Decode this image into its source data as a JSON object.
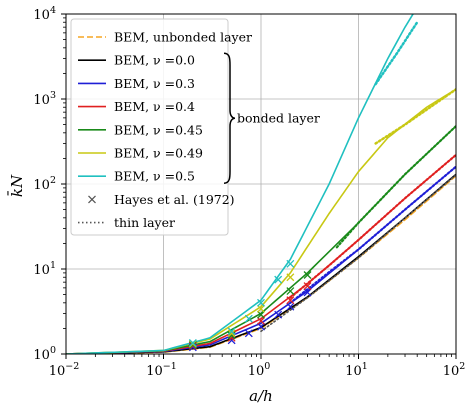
{
  "chart_data": {
    "type": "line",
    "xlabel": "a/h",
    "ylabel": "k̄N",
    "x_scale": "log",
    "y_scale": "log",
    "xlim": [
      0.01,
      100
    ],
    "ylim": [
      1,
      10000
    ],
    "grid": true,
    "legend_placement": "top-left",
    "x_ticks": [
      {
        "value": 0.01,
        "base": "10",
        "exp": "−2"
      },
      {
        "value": 0.1,
        "base": "10",
        "exp": "−1"
      },
      {
        "value": 1,
        "base": "10",
        "exp": "0"
      },
      {
        "value": 10,
        "base": "10",
        "exp": "1"
      },
      {
        "value": 100,
        "base": "10",
        "exp": "2"
      }
    ],
    "y_ticks": [
      {
        "value": 1,
        "base": "10",
        "exp": "0"
      },
      {
        "value": 10,
        "base": "10",
        "exp": "1"
      },
      {
        "value": 100,
        "base": "10",
        "exp": "2"
      },
      {
        "value": 1000,
        "base": "10",
        "exp": "3"
      },
      {
        "value": 10000,
        "base": "10",
        "exp": "4"
      }
    ],
    "brace_label": "bonded layer",
    "series": [
      {
        "name": "BEM, unbonded layer",
        "color": "#f5a623",
        "style": "dashed",
        "width": 1.6,
        "x": [
          0.01,
          0.1,
          0.3,
          1,
          3,
          10,
          30,
          100
        ],
        "y": [
          1.0,
          1.05,
          1.2,
          2.0,
          4.6,
          13.5,
          38,
          125
        ]
      },
      {
        "name": "BEM, ν =0.0",
        "color": "#000000",
        "style": "solid",
        "width": 1.6,
        "x": [
          0.01,
          0.1,
          0.3,
          1,
          3,
          10,
          30,
          100
        ],
        "y": [
          1.0,
          1.06,
          1.22,
          2.05,
          4.7,
          14,
          40,
          130
        ]
      },
      {
        "name": "BEM, ν =0.3",
        "color": "#1f1fd6",
        "style": "solid",
        "width": 1.6,
        "x": [
          0.01,
          0.1,
          0.3,
          1,
          3,
          10,
          30,
          100
        ],
        "y": [
          1.0,
          1.07,
          1.28,
          2.3,
          5.5,
          17,
          50,
          160
        ]
      },
      {
        "name": "BEM, ν =0.4",
        "color": "#e02020",
        "style": "solid",
        "width": 1.6,
        "x": [
          0.01,
          0.1,
          0.3,
          1,
          3,
          10,
          30,
          100
        ],
        "y": [
          1.0,
          1.08,
          1.33,
          2.6,
          6.7,
          22,
          68,
          220
        ]
      },
      {
        "name": "BEM, ν =0.45",
        "color": "#1a8a1a",
        "style": "solid",
        "width": 1.6,
        "x": [
          0.01,
          0.1,
          0.3,
          1,
          3,
          10,
          30,
          100
        ],
        "y": [
          1.0,
          1.09,
          1.4,
          3.0,
          9.0,
          35,
          130,
          480
        ]
      },
      {
        "name": "BEM, ν =0.49",
        "color": "#c8c814",
        "style": "solid",
        "width": 1.6,
        "x": [
          0.01,
          0.1,
          0.3,
          1,
          2,
          5,
          10,
          20,
          50,
          100
        ],
        "y": [
          1.0,
          1.1,
          1.5,
          3.6,
          9,
          45,
          140,
          350,
          800,
          1300
        ]
      },
      {
        "name": "BEM, ν =0.5",
        "color": "#20c0c0",
        "style": "solid",
        "width": 1.6,
        "x": [
          0.01,
          0.1,
          0.3,
          1,
          2,
          5,
          10,
          20,
          30,
          40
        ],
        "y": [
          1.0,
          1.1,
          1.55,
          4.3,
          13,
          100,
          600,
          3000,
          7000,
          12000
        ]
      },
      {
        "name": "thin layer",
        "color": "#555555",
        "style": "dotted",
        "width": 1.6,
        "legend": false,
        "x": [
          1,
          3,
          10,
          30,
          100
        ],
        "y": [
          1.85,
          4.6,
          13.5,
          40,
          128
        ]
      },
      {
        "name": "thin layer",
        "color": "#1f1fd6",
        "style": "dotted",
        "width": 2.2,
        "legend": false,
        "x": [
          2,
          5,
          10,
          30,
          100
        ],
        "y": [
          4.0,
          9.2,
          17,
          50,
          160
        ]
      },
      {
        "name": "thin layer",
        "color": "#e02020",
        "style": "dotted",
        "width": 2.2,
        "legend": false,
        "x": [
          2,
          5,
          10,
          30,
          100
        ],
        "y": [
          4.6,
          11,
          22,
          68,
          220
        ]
      },
      {
        "name": "thin layer",
        "color": "#1a8a1a",
        "style": "dotted",
        "width": 2.2,
        "legend": false,
        "x": [
          6,
          10,
          30,
          100
        ],
        "y": [
          18,
          35,
          130,
          480
        ]
      },
      {
        "name": "thin layer",
        "color": "#c8c814",
        "style": "dotted",
        "width": 2.5,
        "legend": false,
        "x": [
          15,
          30,
          100
        ],
        "y": [
          300,
          500,
          1300
        ]
      },
      {
        "name": "thin layer",
        "color": "#20c0c0",
        "style": "dotted",
        "width": 2.5,
        "legend": false,
        "x": [
          15,
          25,
          40
        ],
        "y": [
          1500,
          3500,
          8000
        ]
      }
    ],
    "markers": {
      "name": "Hayes et al. (1972)",
      "symbol": "x",
      "points": [
        {
          "x": 0.2,
          "y": 1.2,
          "color": "#1f1fd6"
        },
        {
          "x": 0.5,
          "y": 1.45,
          "color": "#1f1fd6"
        },
        {
          "x": 0.75,
          "y": 1.75,
          "color": "#1f1fd6"
        },
        {
          "x": 1.0,
          "y": 2.1,
          "color": "#1f1fd6"
        },
        {
          "x": 1.5,
          "y": 2.9,
          "color": "#1f1fd6"
        },
        {
          "x": 2.0,
          "y": 3.6,
          "color": "#1f1fd6"
        },
        {
          "x": 3.0,
          "y": 5.3,
          "color": "#1f1fd6"
        },
        {
          "x": 0.2,
          "y": 1.25,
          "color": "#e02020"
        },
        {
          "x": 0.5,
          "y": 1.55,
          "color": "#e02020"
        },
        {
          "x": 1.0,
          "y": 2.45,
          "color": "#e02020"
        },
        {
          "x": 2.0,
          "y": 4.3,
          "color": "#e02020"
        },
        {
          "x": 3.0,
          "y": 6.3,
          "color": "#e02020"
        },
        {
          "x": 0.2,
          "y": 1.28,
          "color": "#1a8a1a"
        },
        {
          "x": 0.5,
          "y": 1.65,
          "color": "#1a8a1a"
        },
        {
          "x": 1.0,
          "y": 2.9,
          "color": "#1a8a1a"
        },
        {
          "x": 2.0,
          "y": 5.5,
          "color": "#1a8a1a"
        },
        {
          "x": 3.0,
          "y": 8.5,
          "color": "#1a8a1a"
        },
        {
          "x": 0.2,
          "y": 1.32,
          "color": "#c8c814"
        },
        {
          "x": 0.5,
          "y": 1.75,
          "color": "#c8c814"
        },
        {
          "x": 1.0,
          "y": 3.4,
          "color": "#c8c814"
        },
        {
          "x": 2.0,
          "y": 8.0,
          "color": "#c8c814"
        },
        {
          "x": 0.2,
          "y": 1.35,
          "color": "#20c0c0"
        },
        {
          "x": 0.5,
          "y": 1.85,
          "color": "#20c0c0"
        },
        {
          "x": 0.75,
          "y": 2.6,
          "color": "#20c0c0"
        },
        {
          "x": 1.0,
          "y": 4.0,
          "color": "#20c0c0"
        },
        {
          "x": 1.5,
          "y": 7.5,
          "color": "#20c0c0"
        },
        {
          "x": 2.0,
          "y": 11.5,
          "color": "#20c0c0"
        }
      ]
    },
    "legend": [
      {
        "label": "BEM, unbonded layer",
        "color": "#f5a623",
        "style": "dashed"
      },
      {
        "label": "BEM, ν =0.0",
        "color": "#000000",
        "style": "solid"
      },
      {
        "label": "BEM, ν =0.3",
        "color": "#1f1fd6",
        "style": "solid"
      },
      {
        "label": "BEM, ν =0.4",
        "color": "#e02020",
        "style": "solid"
      },
      {
        "label": "BEM, ν =0.45",
        "color": "#1a8a1a",
        "style": "solid"
      },
      {
        "label": "BEM, ν =0.49",
        "color": "#c8c814",
        "style": "solid"
      },
      {
        "label": "BEM, ν =0.5",
        "color": "#20c0c0",
        "style": "solid"
      },
      {
        "label": "Hayes et al. (1972)",
        "color": "#555555",
        "style": "marker"
      },
      {
        "label": "thin layer",
        "color": "#555555",
        "style": "dotted"
      }
    ]
  }
}
